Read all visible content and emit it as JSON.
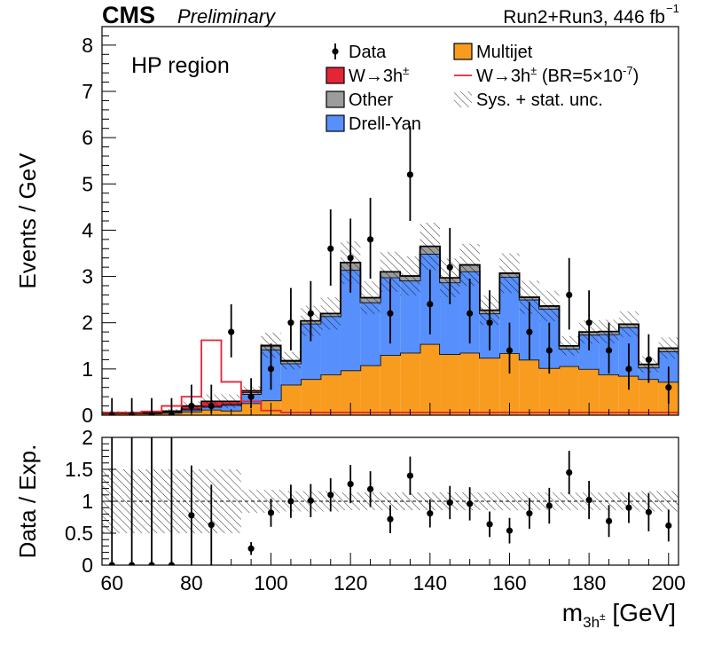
{
  "header": {
    "experiment": "CMS",
    "status": "Preliminary",
    "lumi_text": "Run2+Run3, 446 fb",
    "lumi_sup": "−1"
  },
  "colors": {
    "multijet": "#f89c20",
    "drell_yan": "#5790fc",
    "other": "#9c9c9c",
    "signal": "#e42536",
    "signal_line": "#e42536"
  },
  "chart_data": [
    {
      "type": "bar",
      "stacked": true,
      "region_label": "HP region",
      "ylabel": "Events / GeV",
      "ylim": [
        0,
        8.4
      ],
      "yticks": [
        0,
        1,
        2,
        3,
        4,
        5,
        6,
        7,
        8
      ],
      "xlim": [
        57.5,
        202.5
      ],
      "bin_width": 5,
      "bin_low_edges": [
        57.5,
        62.5,
        67.5,
        72.5,
        77.5,
        82.5,
        87.5,
        92.5,
        97.5,
        102.5,
        107.5,
        112.5,
        117.5,
        122.5,
        127.5,
        132.5,
        137.5,
        142.5,
        147.5,
        152.5,
        157.5,
        162.5,
        167.5,
        172.5,
        177.5,
        182.5,
        187.5,
        192.5,
        197.5
      ],
      "series": [
        {
          "name": "Multijet",
          "values": [
            0.04,
            0.04,
            0.04,
            0.05,
            0.08,
            0.12,
            0.1,
            0.26,
            0.32,
            0.66,
            0.78,
            0.88,
            0.97,
            1.08,
            1.3,
            1.35,
            1.54,
            1.32,
            1.35,
            1.24,
            1.34,
            1.2,
            1.02,
            1.06,
            1.0,
            0.88,
            0.85,
            0.78,
            0.72
          ]
        },
        {
          "name": "Drell-Yan",
          "values": [
            0.01,
            0.01,
            0.01,
            0.02,
            0.04,
            0.06,
            0.12,
            0.2,
            1.1,
            0.46,
            1.2,
            1.26,
            2.17,
            1.36,
            1.68,
            1.56,
            1.95,
            1.55,
            1.76,
            0.96,
            1.65,
            1.3,
            1.28,
            0.38,
            0.74,
            0.87,
            1.05,
            0.25,
            0.66
          ]
        },
        {
          "name": "Other",
          "values": [
            0.0,
            0.0,
            0.0,
            0.0,
            0.02,
            0.02,
            0.02,
            0.04,
            0.08,
            0.05,
            0.06,
            0.06,
            0.16,
            0.1,
            0.12,
            0.1,
            0.16,
            0.1,
            0.14,
            0.07,
            0.08,
            0.05,
            0.06,
            0.06,
            0.06,
            0.06,
            0.07,
            0.07,
            0.07
          ]
        },
        {
          "name": "W→3h±",
          "values": [
            0.01,
            0.01,
            0.01,
            0.02,
            0.06,
            0.1,
            0.06,
            0.03,
            0.01,
            0.01,
            0.0,
            0.0,
            0.0,
            0.0,
            0.0,
            0.0,
            0.0,
            0.0,
            0.0,
            0.0,
            0.0,
            0.0,
            0.0,
            0.0,
            0.0,
            0.0,
            0.0,
            0.0,
            0.0
          ]
        }
      ],
      "signal_scaled": {
        "name": "W→3h± (BR=5×10⁻⁷)",
        "values": [
          0.06,
          0.06,
          0.08,
          0.2,
          0.4,
          1.62,
          0.72,
          0.3,
          0.1,
          0.06,
          0.06,
          0.06,
          0.06,
          0.06,
          0.06,
          0.06,
          0.06,
          0.06,
          0.06,
          0.06,
          0.06,
          0.06,
          0.06,
          0.06,
          0.06,
          0.06,
          0.06,
          0.06,
          0.06
        ]
      },
      "uncertainty_rel": [
        0.5,
        0.5,
        0.5,
        0.5,
        0.5,
        0.5,
        0.5,
        0.18,
        0.18,
        0.16,
        0.16,
        0.16,
        0.14,
        0.14,
        0.14,
        0.14,
        0.14,
        0.14,
        0.14,
        0.14,
        0.14,
        0.14,
        0.14,
        0.14,
        0.14,
        0.14,
        0.14,
        0.16,
        0.16
      ],
      "data": {
        "name": "Data",
        "x": [
          60,
          65,
          70,
          75,
          80,
          85,
          90,
          95,
          100,
          105,
          110,
          115,
          120,
          125,
          130,
          135,
          140,
          145,
          150,
          155,
          160,
          165,
          170,
          175,
          180,
          185,
          190,
          195,
          200
        ],
        "y": [
          0.0,
          0.0,
          0.0,
          0.0,
          0.2,
          0.2,
          1.8,
          0.4,
          1.0,
          2.0,
          2.2,
          3.6,
          3.4,
          3.8,
          2.2,
          5.2,
          2.4,
          3.2,
          2.2,
          2.0,
          1.4,
          1.8,
          1.4,
          2.6,
          2.0,
          1.4,
          1.0,
          1.2,
          0.6
        ],
        "err_up": [
          0.37,
          0.37,
          0.37,
          0.37,
          0.46,
          0.46,
          0.6,
          0.4,
          0.55,
          0.75,
          0.7,
          0.85,
          0.85,
          0.9,
          0.75,
          1.05,
          0.75,
          0.85,
          0.75,
          0.7,
          0.6,
          0.65,
          0.6,
          0.8,
          0.7,
          0.6,
          0.55,
          0.55,
          0.45
        ],
        "err_dn": [
          0.0,
          0.0,
          0.0,
          0.0,
          0.16,
          0.16,
          0.55,
          0.25,
          0.45,
          0.6,
          0.6,
          0.8,
          0.75,
          0.85,
          0.65,
          1.0,
          0.65,
          0.8,
          0.65,
          0.6,
          0.5,
          0.6,
          0.5,
          0.75,
          0.6,
          0.5,
          0.45,
          0.5,
          0.35
        ]
      },
      "legend": [
        {
          "label": "Data",
          "kind": "point"
        },
        {
          "label": "Multijet",
          "kind": "fill",
          "color": "#f89c20"
        },
        {
          "label": "W→3h",
          "sup": "±",
          "kind": "fill",
          "color": "#e42536"
        },
        {
          "label": "W→3h",
          "sup": "±",
          "tail": " (BR=5×10",
          "tail_sup": "-7",
          "tail_end": ")",
          "kind": "line",
          "color": "#e42536"
        },
        {
          "label": "Other",
          "kind": "fill",
          "color": "#9c9c9c"
        },
        {
          "label": "Sys. + stat. unc.",
          "kind": "hatch"
        },
        {
          "label": "Drell-Yan",
          "kind": "fill",
          "color": "#5790fc"
        }
      ],
      "legend_position": "top-right"
    },
    {
      "type": "scatter",
      "ylabel": "Data / Exp.",
      "ylim": [
        0,
        2
      ],
      "yticks": [
        0,
        0.5,
        1,
        1.5,
        2
      ],
      "ytick_labels": [
        "0",
        "0.5",
        "1",
        "1.5",
        "2"
      ],
      "xlabel": "m",
      "xlabel_sub": "3h",
      "xlabel_subsup": "±",
      "xlabel_tail": " [GeV]",
      "xticks": [
        60,
        80,
        100,
        120,
        140,
        160,
        180,
        200
      ],
      "ratio_x": [
        60,
        65,
        70,
        75,
        80,
        85,
        95,
        100,
        105,
        110,
        115,
        120,
        125,
        130,
        135,
        140,
        145,
        150,
        155,
        160,
        165,
        170,
        175,
        180,
        185,
        190,
        195,
        200
      ],
      "ratio_y": [
        0.0,
        0.0,
        0.0,
        0.0,
        0.78,
        0.63,
        0.26,
        0.82,
        1.0,
        1.01,
        1.1,
        1.27,
        1.19,
        0.72,
        1.4,
        0.81,
        0.98,
        0.96,
        0.64,
        0.54,
        0.81,
        0.93,
        1.45,
        1.02,
        0.69,
        0.9,
        0.83,
        0.62
      ],
      "ratio_err": [
        2.0,
        2.0,
        2.0,
        2.0,
        0.78,
        0.63,
        0.1,
        0.22,
        0.26,
        0.26,
        0.26,
        0.3,
        0.28,
        0.22,
        0.3,
        0.22,
        0.26,
        0.26,
        0.2,
        0.2,
        0.24,
        0.28,
        0.34,
        0.3,
        0.25,
        0.24,
        0.3,
        0.25
      ]
    }
  ]
}
